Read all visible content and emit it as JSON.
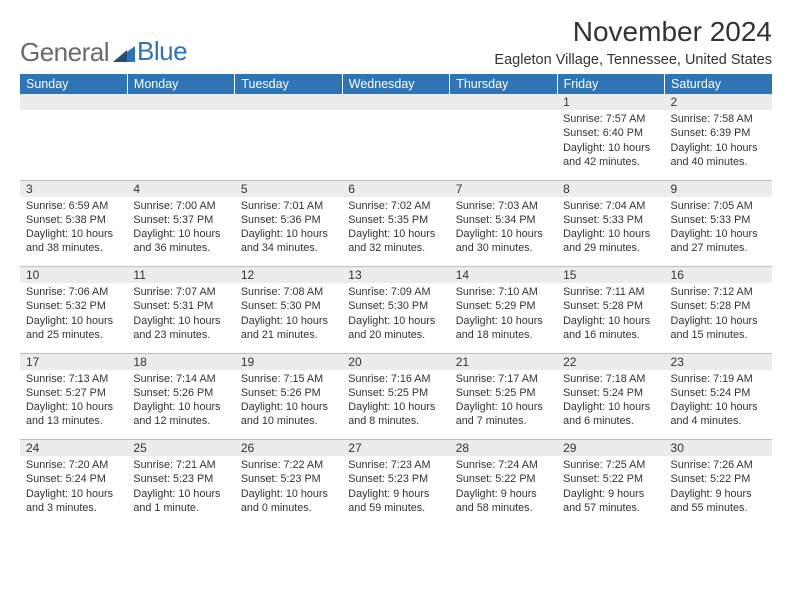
{
  "brand": {
    "word1": "General",
    "word2": "Blue"
  },
  "title": "November 2024",
  "location": "Eagleton Village, Tennessee, United States",
  "colors": {
    "header_bg": "#2f75b5",
    "header_text": "#ffffff",
    "daynum_bg": "#ececec",
    "border": "#bfbfbf",
    "text": "#333333"
  },
  "day_headers": [
    "Sunday",
    "Monday",
    "Tuesday",
    "Wednesday",
    "Thursday",
    "Friday",
    "Saturday"
  ],
  "weeks": [
    [
      null,
      null,
      null,
      null,
      null,
      {
        "n": "1",
        "sunrise": "7:57 AM",
        "sunset": "6:40 PM",
        "day_h": 10,
        "day_m": 42
      },
      {
        "n": "2",
        "sunrise": "7:58 AM",
        "sunset": "6:39 PM",
        "day_h": 10,
        "day_m": 40
      }
    ],
    [
      {
        "n": "3",
        "sunrise": "6:59 AM",
        "sunset": "5:38 PM",
        "day_h": 10,
        "day_m": 38
      },
      {
        "n": "4",
        "sunrise": "7:00 AM",
        "sunset": "5:37 PM",
        "day_h": 10,
        "day_m": 36
      },
      {
        "n": "5",
        "sunrise": "7:01 AM",
        "sunset": "5:36 PM",
        "day_h": 10,
        "day_m": 34
      },
      {
        "n": "6",
        "sunrise": "7:02 AM",
        "sunset": "5:35 PM",
        "day_h": 10,
        "day_m": 32
      },
      {
        "n": "7",
        "sunrise": "7:03 AM",
        "sunset": "5:34 PM",
        "day_h": 10,
        "day_m": 30
      },
      {
        "n": "8",
        "sunrise": "7:04 AM",
        "sunset": "5:33 PM",
        "day_h": 10,
        "day_m": 29
      },
      {
        "n": "9",
        "sunrise": "7:05 AM",
        "sunset": "5:33 PM",
        "day_h": 10,
        "day_m": 27
      }
    ],
    [
      {
        "n": "10",
        "sunrise": "7:06 AM",
        "sunset": "5:32 PM",
        "day_h": 10,
        "day_m": 25
      },
      {
        "n": "11",
        "sunrise": "7:07 AM",
        "sunset": "5:31 PM",
        "day_h": 10,
        "day_m": 23
      },
      {
        "n": "12",
        "sunrise": "7:08 AM",
        "sunset": "5:30 PM",
        "day_h": 10,
        "day_m": 21
      },
      {
        "n": "13",
        "sunrise": "7:09 AM",
        "sunset": "5:30 PM",
        "day_h": 10,
        "day_m": 20
      },
      {
        "n": "14",
        "sunrise": "7:10 AM",
        "sunset": "5:29 PM",
        "day_h": 10,
        "day_m": 18
      },
      {
        "n": "15",
        "sunrise": "7:11 AM",
        "sunset": "5:28 PM",
        "day_h": 10,
        "day_m": 16
      },
      {
        "n": "16",
        "sunrise": "7:12 AM",
        "sunset": "5:28 PM",
        "day_h": 10,
        "day_m": 15
      }
    ],
    [
      {
        "n": "17",
        "sunrise": "7:13 AM",
        "sunset": "5:27 PM",
        "day_h": 10,
        "day_m": 13
      },
      {
        "n": "18",
        "sunrise": "7:14 AM",
        "sunset": "5:26 PM",
        "day_h": 10,
        "day_m": 12
      },
      {
        "n": "19",
        "sunrise": "7:15 AM",
        "sunset": "5:26 PM",
        "day_h": 10,
        "day_m": 10
      },
      {
        "n": "20",
        "sunrise": "7:16 AM",
        "sunset": "5:25 PM",
        "day_h": 10,
        "day_m": 8
      },
      {
        "n": "21",
        "sunrise": "7:17 AM",
        "sunset": "5:25 PM",
        "day_h": 10,
        "day_m": 7
      },
      {
        "n": "22",
        "sunrise": "7:18 AM",
        "sunset": "5:24 PM",
        "day_h": 10,
        "day_m": 6
      },
      {
        "n": "23",
        "sunrise": "7:19 AM",
        "sunset": "5:24 PM",
        "day_h": 10,
        "day_m": 4
      }
    ],
    [
      {
        "n": "24",
        "sunrise": "7:20 AM",
        "sunset": "5:24 PM",
        "day_h": 10,
        "day_m": 3
      },
      {
        "n": "25",
        "sunrise": "7:21 AM",
        "sunset": "5:23 PM",
        "day_h": 10,
        "day_m": 1
      },
      {
        "n": "26",
        "sunrise": "7:22 AM",
        "sunset": "5:23 PM",
        "day_h": 10,
        "day_m": 0
      },
      {
        "n": "27",
        "sunrise": "7:23 AM",
        "sunset": "5:23 PM",
        "day_h": 9,
        "day_m": 59
      },
      {
        "n": "28",
        "sunrise": "7:24 AM",
        "sunset": "5:22 PM",
        "day_h": 9,
        "day_m": 58
      },
      {
        "n": "29",
        "sunrise": "7:25 AM",
        "sunset": "5:22 PM",
        "day_h": 9,
        "day_m": 57
      },
      {
        "n": "30",
        "sunrise": "7:26 AM",
        "sunset": "5:22 PM",
        "day_h": 9,
        "day_m": 55
      }
    ]
  ],
  "labels": {
    "sunrise": "Sunrise: ",
    "sunset": "Sunset: ",
    "daylight_prefix": "Daylight: ",
    "hours_word": " hours",
    "and_word": "and ",
    "minute_word": " minute.",
    "minutes_word": " minutes."
  }
}
